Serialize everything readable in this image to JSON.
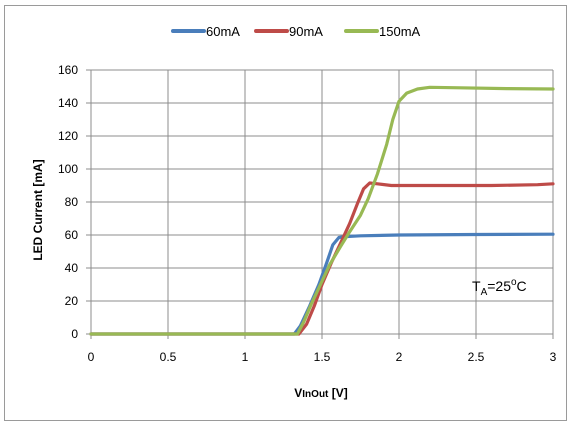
{
  "chart_data": {
    "type": "line",
    "xlabel_main": "V",
    "xlabel_sub": "InOut",
    "xlabel_unit": " [V]",
    "ylabel": "LED Current [mA]",
    "xlim": [
      0,
      3
    ],
    "ylim": [
      0,
      160
    ],
    "xticks": [
      "0",
      "0.5",
      "1",
      "1.5",
      "2",
      "2.5",
      "3"
    ],
    "yticks": [
      "0",
      "20",
      "40",
      "60",
      "80",
      "100",
      "120",
      "140",
      "160"
    ],
    "grid": true,
    "legend_position": "top",
    "annotation": {
      "main": "T",
      "sub": "A",
      "rest": "=25",
      "sup": "o",
      "unit": "C"
    },
    "series": [
      {
        "name": "60mA",
        "color": "#4a7ebb",
        "points": [
          [
            0,
            0
          ],
          [
            1.2,
            0
          ],
          [
            1.32,
            0
          ],
          [
            1.36,
            5
          ],
          [
            1.42,
            17
          ],
          [
            1.48,
            30
          ],
          [
            1.53,
            43
          ],
          [
            1.57,
            54
          ],
          [
            1.61,
            58.5
          ],
          [
            1.65,
            59
          ],
          [
            1.75,
            59.5
          ],
          [
            2,
            60
          ],
          [
            2.5,
            60.3
          ],
          [
            3,
            60.5
          ]
        ]
      },
      {
        "name": "90mA",
        "color": "#be4b48",
        "points": [
          [
            0,
            0
          ],
          [
            1.3,
            0
          ],
          [
            1.35,
            0
          ],
          [
            1.4,
            6
          ],
          [
            1.45,
            17
          ],
          [
            1.5,
            30
          ],
          [
            1.56,
            43
          ],
          [
            1.62,
            55
          ],
          [
            1.68,
            67
          ],
          [
            1.73,
            79
          ],
          [
            1.77,
            88
          ],
          [
            1.81,
            91.5
          ],
          [
            1.86,
            91
          ],
          [
            1.95,
            90
          ],
          [
            2.2,
            90
          ],
          [
            2.6,
            90
          ],
          [
            2.9,
            90.5
          ],
          [
            3,
            91
          ]
        ]
      },
      {
        "name": "150mA",
        "color": "#98b954",
        "points": [
          [
            0,
            0
          ],
          [
            1.3,
            0
          ],
          [
            1.34,
            0
          ],
          [
            1.38,
            7
          ],
          [
            1.43,
            18
          ],
          [
            1.49,
            30
          ],
          [
            1.55,
            42
          ],
          [
            1.62,
            53
          ],
          [
            1.68,
            62
          ],
          [
            1.75,
            72
          ],
          [
            1.8,
            82
          ],
          [
            1.86,
            97
          ],
          [
            1.92,
            115
          ],
          [
            1.96,
            130
          ],
          [
            2,
            141
          ],
          [
            2.05,
            146
          ],
          [
            2.12,
            148.5
          ],
          [
            2.2,
            149.5
          ],
          [
            2.4,
            149.2
          ],
          [
            2.7,
            148.7
          ],
          [
            3,
            148.5
          ]
        ]
      }
    ]
  }
}
